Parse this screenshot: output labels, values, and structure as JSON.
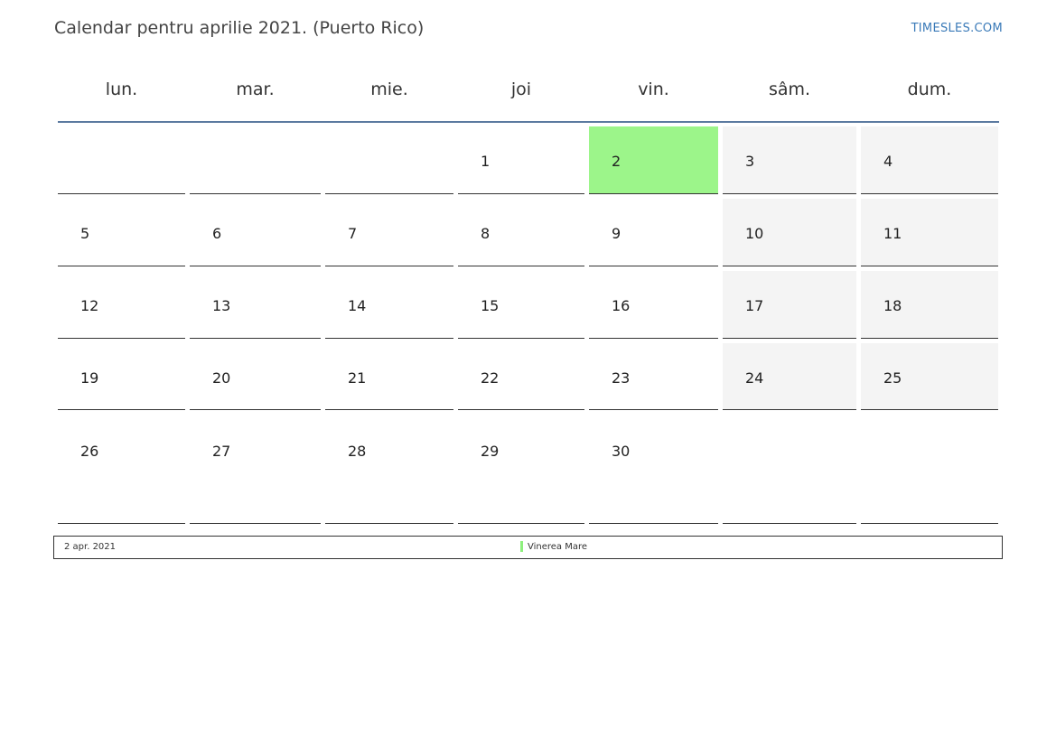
{
  "title": "Calendar pentru aprilie 2021. (Puerto Rico)",
  "site": "TIMESLES.COM",
  "weekdays": [
    "lun.",
    "mar.",
    "mie.",
    "joi",
    "vin.",
    "sâm.",
    "dum."
  ],
  "weeks": [
    [
      "",
      "",
      "",
      "1",
      "2",
      "3",
      "4"
    ],
    [
      "5",
      "6",
      "7",
      "8",
      "9",
      "10",
      "11"
    ],
    [
      "12",
      "13",
      "14",
      "15",
      "16",
      "17",
      "18"
    ],
    [
      "19",
      "20",
      "21",
      "22",
      "23",
      "24",
      "25"
    ],
    [
      "26",
      "27",
      "28",
      "29",
      "30",
      "",
      ""
    ]
  ],
  "holiday_day": "2",
  "colors": {
    "holiday": "#9cf58a",
    "weekend": "#f4f4f4",
    "header_line": "#5b7aa0",
    "site_link": "#3a7ab8"
  },
  "legend": {
    "date": "2 apr. 2021",
    "name": "Vinerea Mare"
  }
}
